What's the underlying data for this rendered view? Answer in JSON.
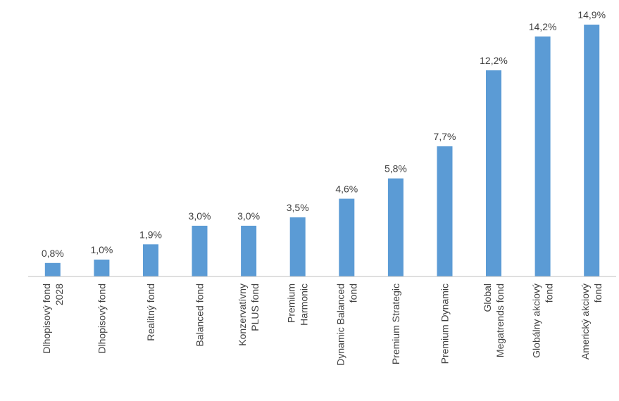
{
  "chart_data": {
    "type": "bar",
    "categories": [
      [
        "Dlhopisový fond",
        "2028"
      ],
      [
        "Dlhopisový fond"
      ],
      [
        "Realitný fond"
      ],
      [
        "Balanced fond"
      ],
      [
        "Konzervatívny",
        "PLUS fond"
      ],
      [
        "Premium",
        "Harmonic"
      ],
      [
        "Dynamic Balanced",
        "fond"
      ],
      [
        "Premium Strategic"
      ],
      [
        "Premium Dynamic"
      ],
      [
        "Global",
        "Megatrends fond"
      ],
      [
        "Globálny akciový",
        "fond"
      ],
      [
        "Americký akciový",
        "fond"
      ]
    ],
    "values": [
      0.8,
      1.0,
      1.9,
      3.0,
      3.0,
      3.5,
      4.6,
      5.8,
      7.7,
      12.2,
      14.2,
      14.9
    ],
    "data_labels": [
      "0,8%",
      "1,0%",
      "1,9%",
      "3,0%",
      "3,0%",
      "3,5%",
      "4,6%",
      "5,8%",
      "7,7%",
      "12,2%",
      "14,2%",
      "14,9%"
    ],
    "ylim": [
      0,
      15
    ],
    "grid": false,
    "legend": "none",
    "colors": {
      "bar": "#5b9bd5",
      "axis": "#bfbfbf",
      "text": "#404040"
    }
  }
}
